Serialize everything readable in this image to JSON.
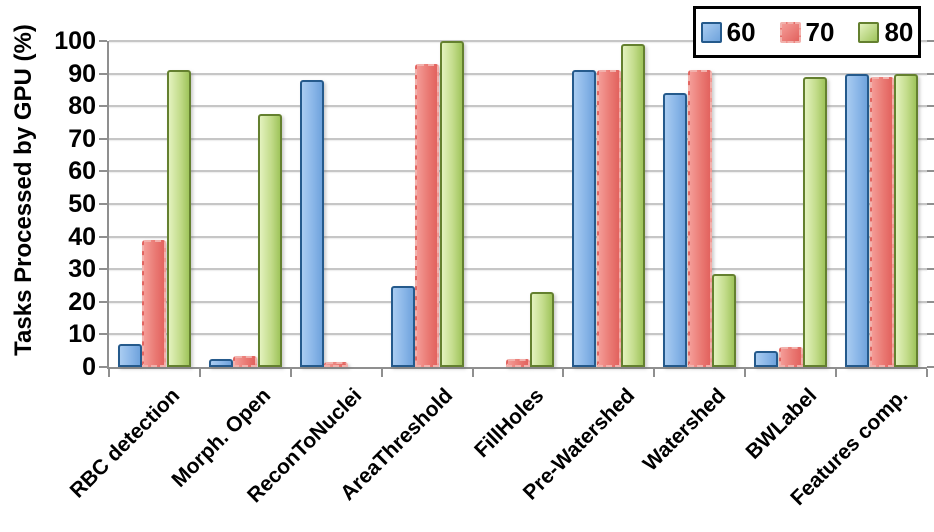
{
  "chart_data": {
    "type": "bar",
    "title": "",
    "ylabel": "Tasks Processed by GPU (%)",
    "xlabel": "",
    "ylim": [
      0,
      100
    ],
    "yticks": [
      0,
      10,
      20,
      30,
      40,
      50,
      60,
      70,
      80,
      90,
      100
    ],
    "grid": true,
    "legend_position": "top-right",
    "categories": [
      "RBC detection",
      "Morph. Open",
      "ReconToNuclei",
      "AreaThreshold",
      "FillHoles",
      "Pre-Watershed",
      "Watershed",
      "BWLabel",
      "Features comp."
    ],
    "series": [
      {
        "name": "60",
        "values": [
          7,
          2.5,
          88,
          25,
          0,
          91,
          84,
          5,
          90
        ],
        "fill_light": "#a9ccf1",
        "fill_dark": "#6fa3dc",
        "border_color": "#255a8c",
        "border_style": "solid"
      },
      {
        "name": "70",
        "values": [
          39,
          3.5,
          1.5,
          93,
          2.5,
          91,
          91,
          6,
          89
        ],
        "fill_light": "#f49c97",
        "fill_dark": "#e2625e",
        "border_color": "#f2b1ac",
        "border_style": "dashed"
      },
      {
        "name": "80",
        "values": [
          91,
          77.5,
          0,
          100,
          23,
          99,
          28.5,
          89,
          90
        ],
        "fill_light": "#e3f2be",
        "fill_dark": "#9fc45b",
        "border_color": "#64802f",
        "border_style": "solid"
      }
    ]
  }
}
